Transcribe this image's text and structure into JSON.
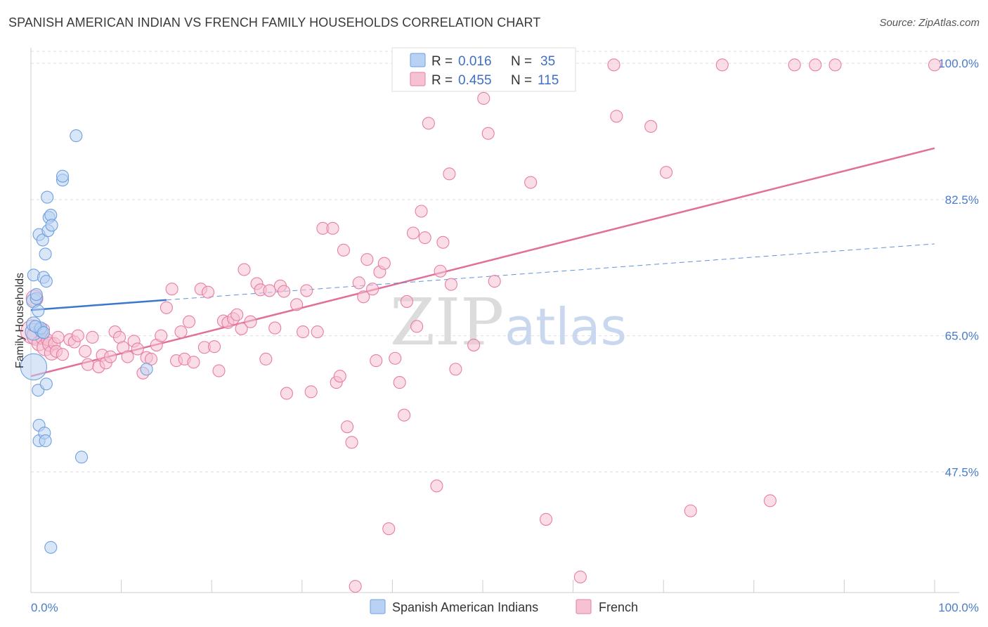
{
  "header": {
    "title": "SPANISH AMERICAN INDIAN VS FRENCH FAMILY HOUSEHOLDS CORRELATION CHART",
    "source": "Source: ZipAtlas.com"
  },
  "colors": {
    "blue": "#6fa0e0",
    "blue_fill": "#b9d1f3",
    "blue_line": "#3a78d0",
    "pink": "#e77ea2",
    "pink_fill": "#f6c1d2",
    "pink_line": "#e0709a",
    "grid": "#dddddd",
    "tick_text": "#4a7cc9"
  },
  "legend": {
    "rows": [
      {
        "r_label": "R =",
        "r_value": "0.016",
        "n_label": "N =",
        "n_value": "35"
      },
      {
        "r_label": "R =",
        "r_value": "0.455",
        "n_label": "N =",
        "n_value": "115"
      }
    ]
  },
  "bottom_legend": {
    "items": [
      "Spanish American Indians",
      "French"
    ]
  },
  "watermark": {
    "zip": "ZIP",
    "atlas": "atlas"
  },
  "chart_data": {
    "type": "scatter",
    "title": "SPANISH AMERICAN INDIAN VS FRENCH FAMILY HOUSEHOLDS CORRELATION CHART",
    "xlabel": "",
    "ylabel": "Family Households",
    "xlim": [
      0,
      100
    ],
    "ylim": [
      32,
      102
    ],
    "x_ticks_labels": [
      "0.0%",
      "100.0%"
    ],
    "y_ticks": [
      47.5,
      65.0,
      82.5,
      100.0
    ],
    "y_tick_labels": [
      "47.5%",
      "65.0%",
      "82.5%",
      "100.0%"
    ],
    "grid": true,
    "legend_position": "top-center",
    "series": [
      {
        "name": "Spanish American Indians",
        "r": 0.016,
        "n": 35,
        "trend_solid": {
          "x": [
            0,
            15
          ],
          "y": [
            68.3,
            69.6
          ]
        },
        "trend_dashed": {
          "x": [
            15,
            100
          ],
          "y": [
            69.6,
            76.8
          ]
        },
        "points": [
          [
            0.3,
            61.0,
            2.2
          ],
          [
            0.3,
            65.5,
            1.4
          ],
          [
            0.3,
            66.5,
            1.2
          ],
          [
            0.3,
            69.5,
            1.2
          ],
          [
            0.3,
            72.8,
            1.0
          ],
          [
            0.6,
            69.8,
            1.0
          ],
          [
            0.6,
            70.3,
            1.0
          ],
          [
            0.8,
            68.2,
            1.0
          ],
          [
            0.8,
            58.0,
            1.0
          ],
          [
            0.9,
            53.5,
            1.0
          ],
          [
            0.9,
            51.5,
            1.0
          ],
          [
            0.9,
            78.0,
            1.0
          ],
          [
            1.0,
            65.8,
            1.0
          ],
          [
            1.2,
            65.5,
            1.0
          ],
          [
            1.3,
            77.3,
            1.0
          ],
          [
            1.4,
            72.5,
            1.0
          ],
          [
            1.5,
            52.5,
            1.0
          ],
          [
            1.6,
            51.5,
            1.0
          ],
          [
            1.6,
            75.5,
            1.0
          ],
          [
            1.7,
            72.0,
            1.0
          ],
          [
            1.7,
            58.8,
            1.0
          ],
          [
            1.8,
            82.8,
            1.0
          ],
          [
            1.9,
            78.5,
            1.0
          ],
          [
            2.0,
            80.2,
            1.0
          ],
          [
            2.2,
            80.5,
            1.0
          ],
          [
            2.3,
            79.2,
            1.0
          ],
          [
            2.2,
            37.8,
            1.0
          ],
          [
            3.5,
            85.0,
            1.0
          ],
          [
            3.5,
            85.5,
            1.0
          ],
          [
            5.0,
            90.7,
            1.0
          ],
          [
            5.6,
            49.4,
            1.0
          ],
          [
            12.8,
            60.7,
            1.0
          ],
          [
            1.1,
            66.0,
            1.0
          ],
          [
            0.5,
            66.2,
            1.0
          ],
          [
            1.4,
            65.4,
            1.0
          ]
        ]
      },
      {
        "name": "French",
        "r": 0.455,
        "n": 115,
        "trend_solid": {
          "x": [
            0,
            100
          ],
          "y": [
            59.8,
            89.1
          ]
        },
        "points": [
          [
            0.2,
            65.5,
            2.0
          ],
          [
            0.4,
            69.8,
            1.4
          ],
          [
            0.6,
            65.0,
            1.6
          ],
          [
            0.9,
            64.0,
            1.2
          ],
          [
            1.2,
            64.7,
            1.0
          ],
          [
            1.4,
            65.8,
            1.0
          ],
          [
            1.6,
            63.5,
            1.4
          ],
          [
            1.8,
            64.5,
            1.0
          ],
          [
            2.1,
            63.9,
            1.2
          ],
          [
            2.3,
            62.8,
            1.2
          ],
          [
            2.6,
            64.0,
            1.0
          ],
          [
            2.8,
            63.0,
            1.0
          ],
          [
            3.0,
            64.8,
            1.0
          ],
          [
            3.5,
            62.6,
            1.0
          ],
          [
            4.3,
            64.5,
            1.0
          ],
          [
            4.8,
            64.2,
            1.0
          ],
          [
            5.2,
            65.0,
            1.0
          ],
          [
            6.0,
            63.0,
            1.0
          ],
          [
            6.3,
            61.3,
            1.0
          ],
          [
            6.8,
            64.8,
            1.0
          ],
          [
            7.5,
            61.0,
            1.0
          ],
          [
            7.9,
            62.5,
            1.0
          ],
          [
            8.3,
            61.5,
            1.0
          ],
          [
            8.8,
            62.3,
            1.0
          ],
          [
            9.3,
            65.5,
            1.0
          ],
          [
            9.8,
            64.8,
            1.0
          ],
          [
            10.2,
            63.5,
            1.0
          ],
          [
            10.7,
            62.3,
            1.0
          ],
          [
            11.4,
            64.3,
            1.0
          ],
          [
            11.8,
            63.3,
            1.0
          ],
          [
            12.4,
            60.2,
            1.0
          ],
          [
            12.8,
            62.2,
            1.0
          ],
          [
            13.3,
            62.0,
            1.0
          ],
          [
            13.9,
            63.8,
            1.0
          ],
          [
            14.4,
            65.0,
            1.0
          ],
          [
            15.0,
            68.6,
            1.0
          ],
          [
            15.6,
            71.0,
            1.0
          ],
          [
            16.1,
            61.8,
            1.0
          ],
          [
            16.6,
            65.5,
            1.0
          ],
          [
            17.0,
            62.0,
            1.0
          ],
          [
            17.5,
            66.8,
            1.0
          ],
          [
            18.0,
            61.6,
            1.0
          ],
          [
            18.8,
            71.0,
            1.0
          ],
          [
            19.2,
            63.5,
            1.0
          ],
          [
            19.6,
            70.6,
            1.0
          ],
          [
            20.3,
            63.6,
            1.0
          ],
          [
            20.8,
            60.5,
            1.0
          ],
          [
            21.3,
            66.9,
            1.0
          ],
          [
            21.8,
            66.7,
            1.0
          ],
          [
            22.4,
            67.2,
            1.0
          ],
          [
            22.8,
            67.7,
            1.0
          ],
          [
            23.3,
            65.9,
            1.0
          ],
          [
            23.6,
            73.5,
            1.0
          ],
          [
            24.3,
            66.8,
            1.0
          ],
          [
            25.0,
            71.7,
            1.0
          ],
          [
            25.4,
            70.9,
            1.0
          ],
          [
            26.0,
            62.0,
            1.0
          ],
          [
            26.4,
            70.8,
            1.0
          ],
          [
            27.0,
            66.0,
            1.0
          ],
          [
            27.6,
            71.4,
            1.0
          ],
          [
            28.0,
            70.7,
            1.0
          ],
          [
            28.3,
            57.6,
            1.0
          ],
          [
            29.4,
            69.0,
            1.0
          ],
          [
            30.1,
            65.5,
            1.0
          ],
          [
            30.5,
            70.8,
            1.0
          ],
          [
            31.0,
            57.8,
            1.0
          ],
          [
            31.7,
            65.5,
            1.0
          ],
          [
            32.3,
            78.8,
            1.0
          ],
          [
            33.4,
            78.8,
            1.0
          ],
          [
            33.8,
            59.0,
            1.0
          ],
          [
            34.2,
            59.8,
            1.0
          ],
          [
            34.6,
            76.0,
            1.0
          ],
          [
            35.0,
            53.3,
            1.0
          ],
          [
            35.5,
            51.3,
            1.0
          ],
          [
            35.9,
            32.8,
            1.0
          ],
          [
            36.3,
            71.8,
            1.0
          ],
          [
            36.8,
            70.0,
            1.0
          ],
          [
            37.2,
            74.8,
            1.0
          ],
          [
            37.8,
            71.0,
            1.0
          ],
          [
            38.2,
            61.8,
            1.0
          ],
          [
            38.6,
            73.2,
            1.0
          ],
          [
            39.1,
            74.3,
            1.0
          ],
          [
            39.6,
            40.2,
            1.0
          ],
          [
            40.3,
            62.1,
            1.0
          ],
          [
            40.8,
            59.0,
            1.0
          ],
          [
            41.3,
            54.8,
            1.0
          ],
          [
            41.6,
            69.4,
            1.0
          ],
          [
            42.3,
            78.2,
            1.0
          ],
          [
            42.7,
            66.2,
            1.0
          ],
          [
            43.2,
            81.0,
            1.0
          ],
          [
            43.6,
            77.6,
            1.0
          ],
          [
            44.0,
            92.3,
            1.0
          ],
          [
            44.9,
            45.7,
            1.0
          ],
          [
            45.3,
            73.3,
            1.0
          ],
          [
            45.6,
            77.0,
            1.0
          ],
          [
            46.3,
            85.8,
            1.0
          ],
          [
            46.5,
            71.6,
            1.0
          ],
          [
            47.0,
            60.7,
            1.0
          ],
          [
            49.0,
            63.8,
            1.0
          ],
          [
            50.1,
            95.5,
            1.0
          ],
          [
            50.6,
            91.0,
            1.0
          ],
          [
            51.3,
            72.0,
            1.0
          ],
          [
            54.4,
            100.0,
            1.0
          ],
          [
            55.3,
            84.7,
            1.0
          ],
          [
            57.0,
            41.4,
            1.0
          ],
          [
            59.0,
            99.8,
            1.0
          ],
          [
            60.8,
            34.0,
            1.0
          ],
          [
            64.5,
            99.8,
            1.0
          ],
          [
            64.8,
            93.2,
            1.0
          ],
          [
            68.6,
            91.9,
            1.0
          ],
          [
            70.3,
            86.0,
            1.0
          ],
          [
            73.0,
            42.5,
            1.0
          ],
          [
            76.5,
            99.8,
            1.0
          ],
          [
            81.8,
            43.8,
            1.0
          ],
          [
            84.5,
            99.8,
            1.0
          ],
          [
            86.8,
            99.8,
            1.0
          ],
          [
            89.0,
            99.8,
            1.0
          ],
          [
            100.0,
            99.8,
            1.0
          ]
        ]
      }
    ]
  }
}
